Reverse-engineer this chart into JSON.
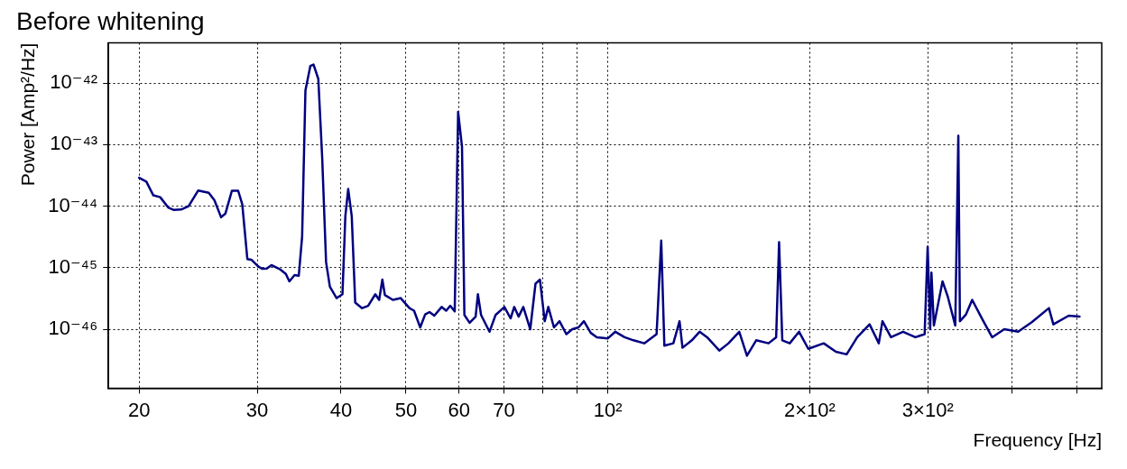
{
  "chart_data": {
    "type": "line",
    "title": "Before whitening",
    "xlabel": "Frequency [Hz]",
    "ylabel": "Power [Amp²/Hz]",
    "log": "xy",
    "grid": true,
    "line_style": "solid",
    "xlim": [
      18,
      545
    ],
    "ylim": [
      1.1e-47,
      4.5e-42
    ],
    "xticks": [
      20,
      30,
      40,
      50,
      60,
      70,
      {
        "value": 80,
        "label": null
      },
      {
        "value": 90,
        "label": null
      },
      {
        "value": 100,
        "label": "10²"
      },
      {
        "value": 200,
        "label": "2×10²"
      },
      {
        "value": 300,
        "label": "3×10²"
      },
      {
        "value": 400,
        "label": null
      },
      {
        "value": 500,
        "label": null
      }
    ],
    "yticks": [
      {
        "value": 1e-46,
        "label": "10⁻⁴⁶"
      },
      {
        "value": 1e-45,
        "label": "10⁻⁴⁵"
      },
      {
        "value": 1e-44,
        "label": "10⁻⁴⁴"
      },
      {
        "value": 1e-43,
        "label": "10⁻⁴³"
      },
      {
        "value": 1e-42,
        "label": "10⁻⁴²"
      }
    ],
    "x": [
      20.0,
      20.5,
      21.0,
      21.5,
      22.1,
      22.5,
      23.1,
      23.7,
      24.5,
      25.4,
      25.9,
      26.5,
      26.9,
      27.5,
      28.1,
      28.5,
      29.0,
      29.4,
      30.1,
      30.5,
      31.0,
      31.5,
      32.5,
      33.1,
      33.5,
      34.1,
      34.6,
      35.0,
      35.4,
      36.0,
      36.4,
      37.0,
      37.5,
      38.0,
      38.5,
      39.4,
      40.2,
      40.6,
      41.0,
      41.5,
      42.0,
      43.0,
      43.9,
      45.0,
      45.6,
      46.1,
      46.5,
      47.8,
      49.1,
      50.6,
      51.4,
      52.5,
      53.4,
      54.2,
      55.1,
      56.5,
      57.4,
      58.2,
      59.1,
      59.8,
      60.6,
      61.1,
      62.2,
      63.5,
      64.0,
      64.7,
      66.6,
      68.0,
      70.1,
      71.6,
      72.5,
      73.6,
      74.8,
      76.6,
      78.0,
      79.2,
      80.5,
      81.5,
      83.1,
      84.7,
      86.7,
      88.5,
      90.4,
      92.1,
      94.3,
      96.3,
      100,
      102.6,
      105.9,
      109.2,
      113.3,
      118.2,
      120.1,
      121.4,
      125.2,
      127.9,
      129.2,
      133.4,
      137.0,
      140.6,
      146.6,
      151.3,
      157.0,
      161.2,
      166.4,
      173.6,
      178.2,
      180.0,
      182.0,
      186.7,
      192.8,
      199.0,
      209.8,
      218.8,
      227,
      235.4,
      245.6,
      253.5,
      256.7,
      264.3,
      275.5,
      287.4,
      296.7,
      299.8,
      302.4,
      303.7,
      306.3,
      315.5,
      321.2,
      329.6,
      333.1,
      334.9,
      342.0,
      349.3,
      362.4,
      374.1,
      390.0,
      409,
      428.6,
      454.6,
      461.6,
      486.6,
      505
    ],
    "series": [
      {
        "color": "#000080",
        "values": [
          2.9e-44,
          2.5e-44,
          1.5e-44,
          1.4e-44,
          9.5e-45,
          8.7e-45,
          8.8e-45,
          1e-44,
          1.8e-44,
          1.65e-44,
          1.25e-44,
          6.6e-45,
          7.6e-45,
          1.78e-44,
          1.78e-44,
          1.07e-44,
          1.38e-45,
          1.35e-45,
          1.05e-45,
          9.6e-46,
          9.7e-46,
          1.1e-45,
          9.3e-46,
          7.9e-46,
          6e-46,
          7.6e-46,
          7.4e-46,
          3.2e-45,
          7.6e-43,
          1.9e-42,
          2e-42,
          1.17e-42,
          6e-44,
          1.23e-45,
          4.9e-46,
          3.2e-46,
          3.7e-46,
          6.9e-45,
          1.9e-44,
          6.9e-45,
          2.7e-46,
          2.2e-46,
          2.4e-46,
          3.7e-46,
          3e-46,
          6.4e-46,
          3.6e-46,
          3e-46,
          3.2e-46,
          2.2e-46,
          2e-46,
          1.07e-46,
          1.74e-46,
          1.9e-46,
          1.66e-46,
          2.3e-46,
          2e-46,
          2.4e-46,
          1.95e-46,
          3.4e-43,
          9.3e-44,
          1.7e-46,
          1.27e-46,
          1.6e-46,
          3.7e-46,
          1.7e-46,
          9.1e-47,
          1.7e-46,
          2.3e-46,
          1.5e-46,
          2.3e-46,
          1.6e-46,
          2.3e-46,
          1e-46,
          5.5e-46,
          6.4e-46,
          1.35e-46,
          2.3e-46,
          1.07e-46,
          1.35e-46,
          8.3e-47,
          1e-46,
          1.07e-46,
          1.35e-46,
          8.7e-47,
          7.4e-47,
          7.1e-47,
          9.1e-47,
          7.4e-47,
          6.6e-47,
          5.9e-47,
          8.3e-47,
          2.75e-45,
          5.4e-47,
          5.9e-47,
          1.35e-46,
          5e-47,
          6.6e-47,
          9.1e-47,
          7.4e-47,
          4.5e-47,
          5.9e-47,
          9.1e-47,
          3.7e-47,
          6.6e-47,
          5.9e-47,
          7.4e-47,
          2.6e-45,
          6.6e-47,
          5.9e-47,
          9.1e-47,
          4.8e-47,
          5.9e-47,
          4.3e-47,
          3.9e-47,
          7.4e-47,
          1.2e-46,
          5.9e-47,
          1.35e-46,
          7.4e-47,
          9.1e-47,
          7.4e-47,
          8.3e-47,
          2.2e-45,
          1e-46,
          8.3e-46,
          1.15e-46,
          6e-46,
          3.4e-46,
          1.15e-46,
          1.4e-43,
          1.35e-46,
          1.74e-46,
          3e-46,
          1.4e-46,
          7.4e-47,
          1e-46,
          9.1e-47,
          1.3e-46,
          2.2e-46,
          1.2e-46,
          1.66e-46,
          1.6e-46
        ]
      }
    ]
  }
}
